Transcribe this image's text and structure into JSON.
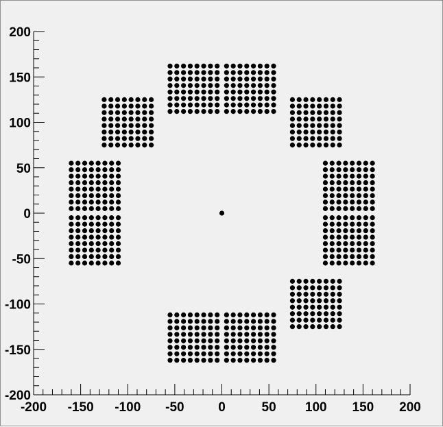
{
  "chart_data": {
    "type": "scatter",
    "title": "",
    "xlabel": "",
    "ylabel": "",
    "xlim": [
      -200,
      200
    ],
    "ylim": [
      -200,
      200
    ],
    "grid": false,
    "x_ticks": [
      -200,
      -150,
      -100,
      -50,
      0,
      50,
      100,
      150,
      200
    ],
    "y_ticks": [
      200,
      150,
      100,
      50,
      0,
      -50,
      -100,
      -150,
      -200
    ],
    "x_tick_labels": [
      "-200",
      "-150",
      "-100",
      "-50",
      "0",
      "50",
      "100",
      "150",
      "200"
    ],
    "y_tick_labels": [
      "200",
      "150",
      "100",
      "50",
      "0",
      "-50",
      "-100",
      "-150",
      "-200"
    ],
    "marker_color": "#000000",
    "background_color": "#f0f0f0",
    "grid_blocks_description_note": null,
    "blocks": [
      {
        "x": [
          -160,
          -110
        ],
        "y": [
          5,
          55
        ],
        "cols": 8,
        "rows": 8
      },
      {
        "x": [
          -160,
          -110
        ],
        "y": [
          -55,
          -5
        ],
        "cols": 8,
        "rows": 8
      },
      {
        "x": [
          110,
          160
        ],
        "y": [
          5,
          55
        ],
        "cols": 8,
        "rows": 8
      },
      {
        "x": [
          110,
          160
        ],
        "y": [
          -55,
          -5
        ],
        "cols": 8,
        "rows": 8
      },
      {
        "x": [
          -125,
          -75
        ],
        "y": [
          75,
          125
        ],
        "cols": 8,
        "rows": 8
      },
      {
        "x": [
          75,
          125
        ],
        "y": [
          75,
          125
        ],
        "cols": 8,
        "rows": 8
      },
      {
        "x": [
          75,
          125
        ],
        "y": [
          -125,
          -75
        ],
        "cols": 8,
        "rows": 8
      },
      {
        "x": [
          -55,
          -5
        ],
        "y": [
          112,
          162
        ],
        "cols": 8,
        "rows": 8
      },
      {
        "x": [
          5,
          55
        ],
        "y": [
          112,
          162
        ],
        "cols": 8,
        "rows": 8
      },
      {
        "x": [
          -55,
          -5
        ],
        "y": [
          -162,
          -112
        ],
        "cols": 8,
        "rows": 8
      },
      {
        "x": [
          5,
          55
        ],
        "y": [
          -162,
          -112
        ],
        "cols": 8,
        "rows": 8
      }
    ],
    "points": [
      [
        0,
        0
      ]
    ]
  }
}
